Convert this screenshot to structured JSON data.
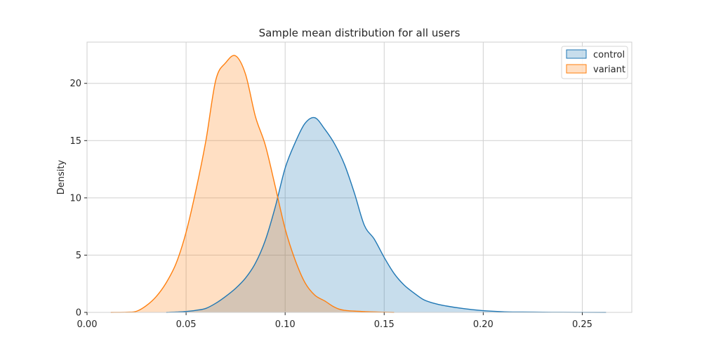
{
  "chart_data": {
    "type": "area",
    "title": "Sample mean distribution for all users",
    "xlabel": "",
    "ylabel": "Density",
    "xlim": [
      0.0,
      0.275
    ],
    "ylim": [
      0,
      23.6
    ],
    "x_ticks": [
      0.0,
      0.05,
      0.1,
      0.15,
      0.2,
      0.25
    ],
    "x_tick_labels": [
      "0.00",
      "0.05",
      "0.10",
      "0.15",
      "0.20",
      "0.25"
    ],
    "y_ticks": [
      0,
      5,
      10,
      15,
      20
    ],
    "y_tick_labels": [
      "0",
      "5",
      "10",
      "15",
      "20"
    ],
    "grid": true,
    "legend_position": "top-right",
    "series": [
      {
        "name": "control",
        "color": "#1f77b4",
        "fill_color": "#1f77b4",
        "fill_opacity": 0.25,
        "points": [
          [
            0.04,
            0.0
          ],
          [
            0.045,
            0.03
          ],
          [
            0.05,
            0.08
          ],
          [
            0.055,
            0.18
          ],
          [
            0.06,
            0.35
          ],
          [
            0.065,
            0.8
          ],
          [
            0.07,
            1.4
          ],
          [
            0.075,
            2.1
          ],
          [
            0.08,
            3.0
          ],
          [
            0.085,
            4.3
          ],
          [
            0.09,
            6.3
          ],
          [
            0.095,
            9.2
          ],
          [
            0.1,
            12.6
          ],
          [
            0.105,
            14.8
          ],
          [
            0.11,
            16.5
          ],
          [
            0.115,
            17.0
          ],
          [
            0.12,
            16.0
          ],
          [
            0.125,
            14.7
          ],
          [
            0.13,
            12.9
          ],
          [
            0.135,
            10.4
          ],
          [
            0.14,
            7.6
          ],
          [
            0.145,
            6.4
          ],
          [
            0.15,
            4.8
          ],
          [
            0.155,
            3.4
          ],
          [
            0.16,
            2.4
          ],
          [
            0.165,
            1.7
          ],
          [
            0.17,
            1.1
          ],
          [
            0.175,
            0.8
          ],
          [
            0.18,
            0.6
          ],
          [
            0.19,
            0.33
          ],
          [
            0.2,
            0.15
          ],
          [
            0.21,
            0.06
          ],
          [
            0.22,
            0.03
          ],
          [
            0.24,
            0.01
          ],
          [
            0.262,
            0.0
          ]
        ]
      },
      {
        "name": "variant",
        "color": "#ff7f0e",
        "fill_color": "#ff7f0e",
        "fill_opacity": 0.25,
        "points": [
          [
            0.012,
            0.0
          ],
          [
            0.02,
            0.02
          ],
          [
            0.025,
            0.1
          ],
          [
            0.03,
            0.6
          ],
          [
            0.035,
            1.4
          ],
          [
            0.04,
            2.6
          ],
          [
            0.045,
            4.3
          ],
          [
            0.05,
            7.0
          ],
          [
            0.055,
            10.7
          ],
          [
            0.06,
            15.0
          ],
          [
            0.065,
            20.3
          ],
          [
            0.07,
            21.8
          ],
          [
            0.075,
            22.4
          ],
          [
            0.08,
            20.8
          ],
          [
            0.085,
            17.1
          ],
          [
            0.09,
            14.6
          ],
          [
            0.095,
            11.0
          ],
          [
            0.1,
            7.3
          ],
          [
            0.105,
            4.6
          ],
          [
            0.11,
            2.6
          ],
          [
            0.115,
            1.5
          ],
          [
            0.12,
            1.0
          ],
          [
            0.125,
            0.45
          ],
          [
            0.13,
            0.18
          ],
          [
            0.14,
            0.07
          ],
          [
            0.15,
            0.02
          ],
          [
            0.155,
            0.0
          ]
        ]
      }
    ]
  }
}
